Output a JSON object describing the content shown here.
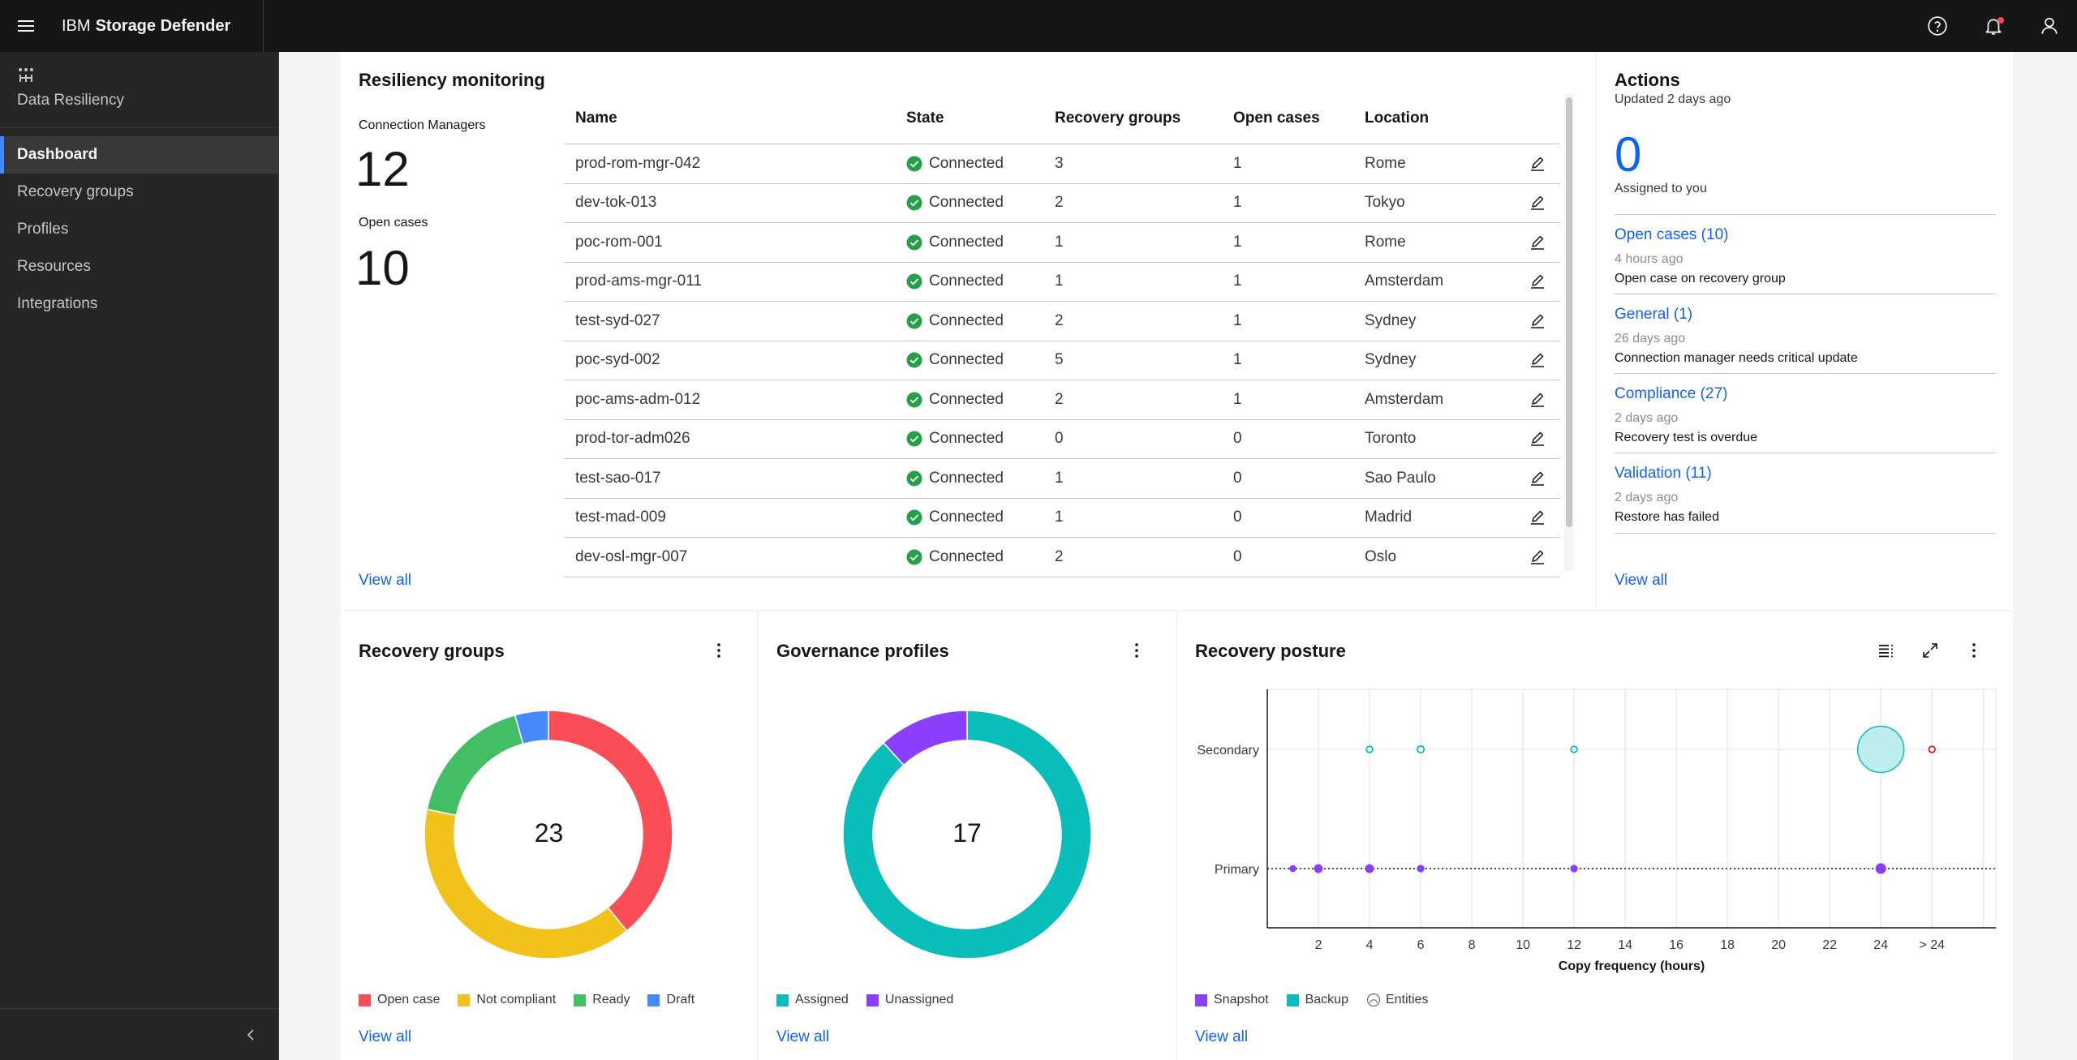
{
  "app": {
    "brand_prefix": "IBM",
    "brand_name": "Storage Defender"
  },
  "sidebar": {
    "section_label": "Data Resiliency",
    "items": [
      {
        "label": "Dashboard",
        "active": true
      },
      {
        "label": "Recovery groups",
        "active": false
      },
      {
        "label": "Profiles",
        "active": false
      },
      {
        "label": "Resources",
        "active": false
      },
      {
        "label": "Integrations",
        "active": false
      }
    ]
  },
  "resiliency": {
    "title": "Resiliency monitoring",
    "connection_managers_label": "Connection Managers",
    "connection_managers_value": "12",
    "open_cases_label": "Open cases",
    "open_cases_value": "10",
    "view_all": "View all",
    "columns": [
      "Name",
      "State",
      "Recovery groups",
      "Open cases",
      "Location"
    ],
    "rows": [
      {
        "name": "prod-rom-mgr-042",
        "state": "Connected",
        "rg": "3",
        "oc": "1",
        "loc": "Rome"
      },
      {
        "name": "dev-tok-013",
        "state": "Connected",
        "rg": "2",
        "oc": "1",
        "loc": "Tokyo"
      },
      {
        "name": "poc-rom-001",
        "state": "Connected",
        "rg": "1",
        "oc": "1",
        "loc": "Rome"
      },
      {
        "name": "prod-ams-mgr-011",
        "state": "Connected",
        "rg": "1",
        "oc": "1",
        "loc": "Amsterdam"
      },
      {
        "name": "test-syd-027",
        "state": "Connected",
        "rg": "2",
        "oc": "1",
        "loc": "Sydney"
      },
      {
        "name": "poc-syd-002",
        "state": "Connected",
        "rg": "5",
        "oc": "1",
        "loc": "Sydney"
      },
      {
        "name": "poc-ams-adm-012",
        "state": "Connected",
        "rg": "2",
        "oc": "1",
        "loc": "Amsterdam"
      },
      {
        "name": "prod-tor-adm026",
        "state": "Connected",
        "rg": "0",
        "oc": "0",
        "loc": "Toronto"
      },
      {
        "name": "test-sao-017",
        "state": "Connected",
        "rg": "1",
        "oc": "0",
        "loc": "Sao Paulo"
      },
      {
        "name": "test-mad-009",
        "state": "Connected",
        "rg": "1",
        "oc": "0",
        "loc": "Madrid"
      },
      {
        "name": "dev-osl-mgr-007",
        "state": "Connected",
        "rg": "2",
        "oc": "0",
        "loc": "Oslo"
      }
    ]
  },
  "actions": {
    "title": "Actions",
    "updated": "Updated 2 days ago",
    "assigned_value": "0",
    "assigned_label": "Assigned to you",
    "items": [
      {
        "title": "Open cases (10)",
        "time": "4 hours ago",
        "desc": "Open case on recovery group"
      },
      {
        "title": "General (1)",
        "time": "26 days ago",
        "desc": "Connection manager needs critical update"
      },
      {
        "title": "Compliance (27)",
        "time": "2 days ago",
        "desc": "Recovery test is overdue"
      },
      {
        "title": "Validation (11)",
        "time": "2 days ago",
        "desc": "Restore has failed"
      }
    ],
    "view_all": "View all"
  },
  "recovery_groups": {
    "title": "Recovery groups",
    "view_all": "View all"
  },
  "governance_profiles": {
    "title": "Governance profiles",
    "view_all": "View all"
  },
  "recovery_posture": {
    "title": "Recovery posture",
    "view_all": "View all",
    "entities_label": "Entities"
  },
  "colors": {
    "open_case": "#fa4d56",
    "not_compliant": "#f1c21b",
    "ready": "#42be65",
    "draft": "#4589ff",
    "assigned": "#08bdba",
    "unassigned": "#8a3ffc",
    "snapshot": "#8a3ffc",
    "backup": "#08bdba",
    "link": "#0f62fe"
  },
  "chart_data": [
    {
      "type": "pie",
      "donut": true,
      "title": "Recovery groups",
      "total": "23",
      "categories": [
        "Open case",
        "Not compliant",
        "Ready",
        "Draft"
      ],
      "values": [
        9,
        9,
        4,
        1
      ],
      "colors": [
        "#fa4d56",
        "#f1c21b",
        "#42be65",
        "#4589ff"
      ],
      "legend": "bottom-left"
    },
    {
      "type": "pie",
      "donut": true,
      "title": "Governance profiles",
      "total": "17",
      "categories": [
        "Assigned",
        "Unassigned"
      ],
      "values": [
        15,
        2
      ],
      "colors": [
        "#08bdba",
        "#8a3ffc"
      ],
      "legend": "bottom-left"
    },
    {
      "type": "scatter",
      "title": "Recovery posture",
      "xlabel": "Copy frequency (hours)",
      "x_ticks": [
        "2",
        "4",
        "6",
        "8",
        "10",
        "12",
        "14",
        "16",
        "18",
        "20",
        "22",
        "24",
        "> 24"
      ],
      "xlim": [
        0,
        28.5
      ],
      "categories": [
        "Secondary",
        "Primary"
      ],
      "grid": true,
      "legend": "bottom-left",
      "series": [
        {
          "name": "Snapshot",
          "color": "#8a3ffc",
          "points": [
            {
              "x": 1,
              "y": "Primary",
              "size": 1
            },
            {
              "x": 2,
              "y": "Primary",
              "size": 1.3
            },
            {
              "x": 4,
              "y": "Primary",
              "size": 1.3
            },
            {
              "x": 6,
              "y": "Primary",
              "size": 1.1
            },
            {
              "x": 12,
              "y": "Primary",
              "size": 1.1
            },
            {
              "x": 24,
              "y": "Primary",
              "size": 1.6
            }
          ]
        },
        {
          "name": "Backup",
          "color": "#08bdba",
          "points": [
            {
              "x": 4,
              "y": "Secondary",
              "size": 1
            },
            {
              "x": 6,
              "y": "Secondary",
              "size": 1.1
            },
            {
              "x": 12,
              "y": "Secondary",
              "size": 1
            },
            {
              "x": 24,
              "y": "Secondary",
              "size": 7.5
            }
          ]
        },
        {
          "name": "Entities",
          "color": "#da1e28",
          "points": [
            {
              "x": 26,
              "y": "Secondary",
              "size": 1
            }
          ]
        }
      ]
    }
  ]
}
